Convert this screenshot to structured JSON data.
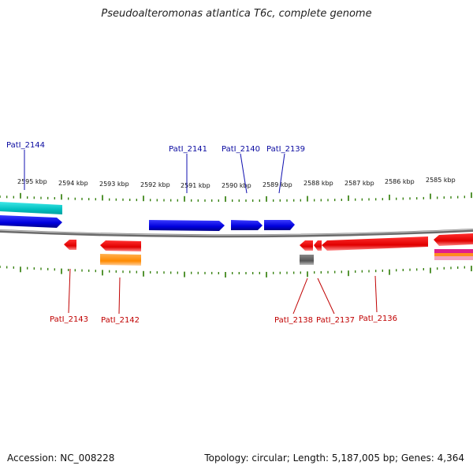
{
  "title": "Pseudoalteromonas atlantica T6c, complete genome",
  "footer": {
    "accession": "Accession: NC_008228",
    "summary": "Topology: circular; Length: 5,187,005 bp; Genes: 4,364"
  },
  "colors": {
    "forward_gene": "#0a0ad8",
    "reverse_gene": "#e00000",
    "tick": "#2a7a00",
    "backbone": "#8a8a8a",
    "forward_label": "#0a0aa0",
    "reverse_label": "#c00000"
  },
  "ruler_labels": [
    "2595 kbp",
    "2594 kbp",
    "2593 kbp",
    "2592 kbp",
    "2591 kbp",
    "2590 kbp",
    "2589 kbp",
    "2588 kbp",
    "2587 kbp",
    "2586 kbp",
    "2585 kbp"
  ],
  "gene_labels_top": [
    "PatI_2144",
    "PatI_2141",
    "PatI_2140",
    "PatI_2139"
  ],
  "gene_labels_bottom": [
    "PatI_2143",
    "PatI_2142",
    "PatI_2138",
    "PatI_2137",
    "PatI_2136"
  ]
}
